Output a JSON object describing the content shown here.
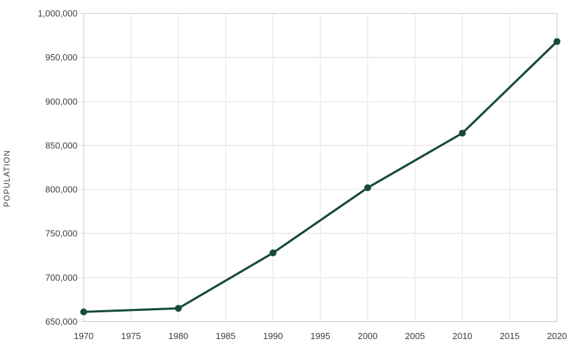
{
  "chart_data": {
    "type": "line",
    "title": "",
    "xlabel": "",
    "ylabel": "POPULATION",
    "series_name": "Population",
    "x": [
      1970,
      1980,
      1990,
      2000,
      2010,
      2020
    ],
    "values": [
      661000,
      665000,
      728000,
      802000,
      864000,
      968000
    ],
    "xlim": [
      1970,
      2020
    ],
    "ylim": [
      650000,
      1000000
    ],
    "x_ticks": [
      1970,
      1975,
      1980,
      1985,
      1990,
      1995,
      2000,
      2005,
      2010,
      2015,
      2020
    ],
    "x_tick_labels": [
      "1970",
      "1975",
      "1980",
      "1985",
      "1990",
      "1995",
      "2000",
      "2005",
      "2010",
      "2015",
      "2020"
    ],
    "y_ticks": [
      650000,
      700000,
      750000,
      800000,
      850000,
      900000,
      950000,
      1000000
    ],
    "y_tick_labels": [
      "650,000",
      "700,000",
      "750,000",
      "800,000",
      "850,000",
      "900,000",
      "950,000",
      "1,000,000"
    ],
    "grid": "on",
    "legend": "none",
    "marker": "filled-circle",
    "colors": {
      "line": "#174b38",
      "marker": "#174b38",
      "grid": "#e0e0e0",
      "axis_border": "#c7c7c7",
      "tick_text": "#3d3d3d",
      "background": "#ffffff"
    }
  }
}
